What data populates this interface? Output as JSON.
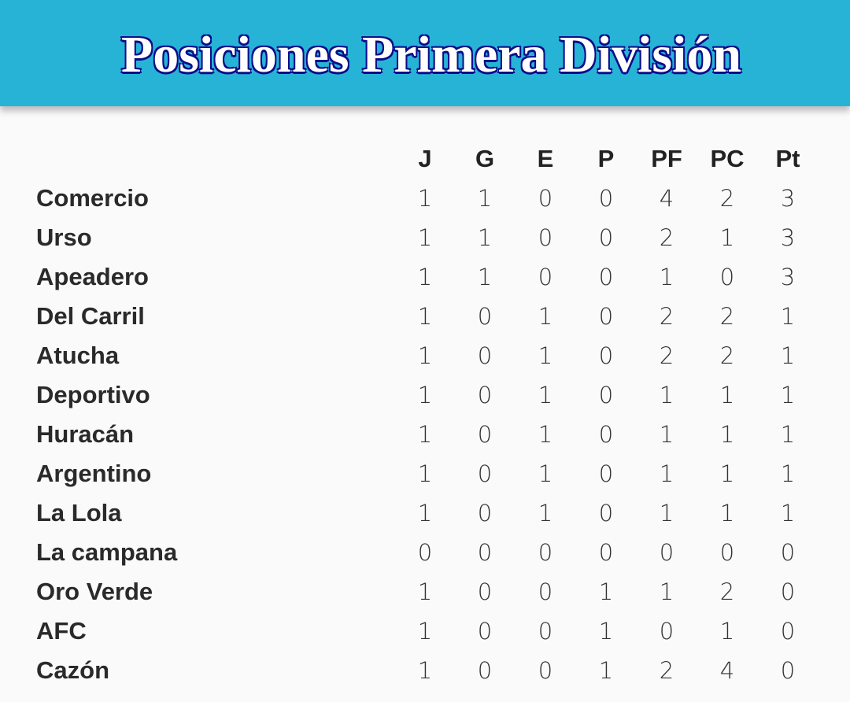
{
  "header": {
    "title": "Posiciones Primera División",
    "background": "#27b3d6"
  },
  "table": {
    "columns": [
      "J",
      "G",
      "E",
      "P",
      "PF",
      "PC",
      "Pt"
    ],
    "rows": [
      {
        "team": "Comercio",
        "values": [
          1,
          1,
          0,
          0,
          4,
          2,
          3
        ]
      },
      {
        "team": "Urso",
        "values": [
          1,
          1,
          0,
          0,
          2,
          1,
          3
        ]
      },
      {
        "team": "Apeadero",
        "values": [
          1,
          1,
          0,
          0,
          1,
          0,
          3
        ]
      },
      {
        "team": "Del Carril",
        "values": [
          1,
          0,
          1,
          0,
          2,
          2,
          1
        ]
      },
      {
        "team": "Atucha",
        "values": [
          1,
          0,
          1,
          0,
          2,
          2,
          1
        ]
      },
      {
        "team": "Deportivo",
        "values": [
          1,
          0,
          1,
          0,
          1,
          1,
          1
        ]
      },
      {
        "team": "Huracán",
        "values": [
          1,
          0,
          1,
          0,
          1,
          1,
          1
        ]
      },
      {
        "team": "Argentino",
        "values": [
          1,
          0,
          1,
          0,
          1,
          1,
          1
        ]
      },
      {
        "team": "La Lola",
        "values": [
          1,
          0,
          1,
          0,
          1,
          1,
          1
        ]
      },
      {
        "team": "La campana",
        "values": [
          0,
          0,
          0,
          0,
          0,
          0,
          0
        ]
      },
      {
        "team": "Oro Verde",
        "values": [
          1,
          0,
          0,
          1,
          1,
          2,
          0
        ]
      },
      {
        "team": "AFC",
        "values": [
          1,
          0,
          0,
          1,
          0,
          1,
          0
        ]
      },
      {
        "team": "Cazón",
        "values": [
          1,
          0,
          0,
          1,
          2,
          4,
          0
        ]
      }
    ]
  }
}
